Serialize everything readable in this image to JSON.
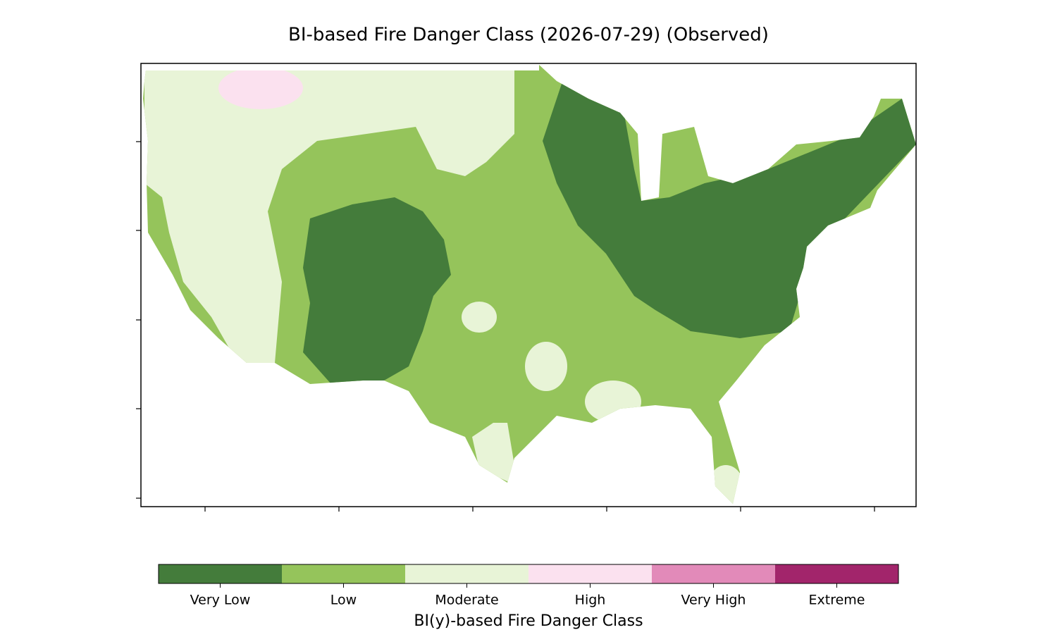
{
  "title": "BI-based Fire Danger Class (2026-07-29) (Observed)",
  "legend": {
    "label": "BI(y)-based Fire Danger Class",
    "classes": [
      {
        "name": "Very Low",
        "color": "#447c3b"
      },
      {
        "name": "Low",
        "color": "#95c45b"
      },
      {
        "name": "Moderate",
        "color": "#e8f4d7"
      },
      {
        "name": "High",
        "color": "#fbe1ef"
      },
      {
        "name": "Very High",
        "color": "#e28ab9"
      },
      {
        "name": "Extreme",
        "color": "#a2256b"
      }
    ]
  }
}
